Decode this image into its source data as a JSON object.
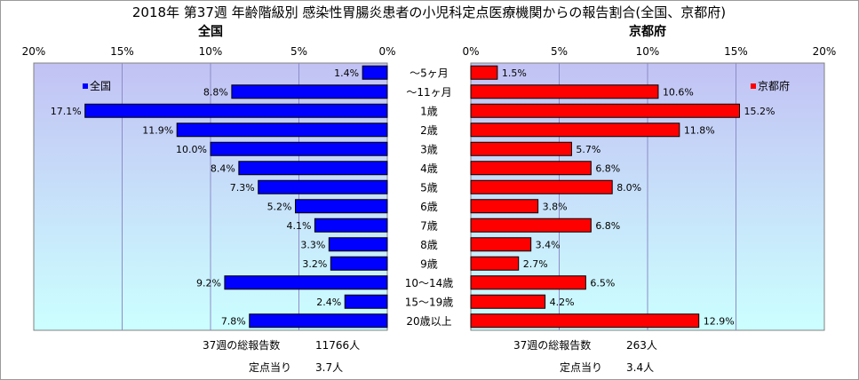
{
  "chart_data": {
    "type": "bar",
    "title": "2018年 第37週 年齢階級別 感染性胃腸炎患者の小児科定点医療機関からの報告割合(全国、京都府)",
    "categories": [
      "～5ヶ月",
      "～11ヶ月",
      "1歳",
      "2歳",
      "3歳",
      "4歳",
      "5歳",
      "6歳",
      "7歳",
      "8歳",
      "9歳",
      "10～14歳",
      "15～19歳",
      "20歳以上"
    ],
    "xlim": [
      0,
      20
    ],
    "ticks": [
      20,
      15,
      10,
      5,
      0
    ],
    "tick_suffix": "%",
    "value_suffix": "%",
    "grid": true,
    "series": [
      {
        "name": "全国",
        "panel_title": "全国",
        "legend_label": "全国",
        "color": "#0000ff",
        "values": [
          1.4,
          8.8,
          17.1,
          11.9,
          10.0,
          8.4,
          7.3,
          5.2,
          4.1,
          3.3,
          3.2,
          9.2,
          2.4,
          7.8
        ],
        "value_labels": [
          "1.4%",
          "8.8%",
          "17.1%",
          "11.9%",
          "10.0%",
          "8.4%",
          "7.3%",
          "5.2%",
          "4.1%",
          "3.3%",
          "3.2%",
          "9.2%",
          "2.4%",
          "7.8%"
        ],
        "total_label": "37週の総報告数",
        "total_value": "11766人",
        "per_label": "定点当り",
        "per_value": "3.7人"
      },
      {
        "name": "京都府",
        "panel_title": "京都府",
        "legend_label": "京都府",
        "color": "#ff0000",
        "values": [
          1.5,
          10.6,
          15.2,
          11.8,
          5.7,
          6.8,
          8.0,
          3.8,
          6.8,
          3.4,
          2.7,
          6.5,
          4.2,
          12.9
        ],
        "value_labels": [
          "1.5%",
          "10.6%",
          "15.2%",
          "11.8%",
          "5.7%",
          "6.8%",
          "8.0%",
          "3.8%",
          "6.8%",
          "3.4%",
          "2.7%",
          "6.5%",
          "4.2%",
          "12.9%"
        ],
        "total_label": "37週の総報告数",
        "total_value": "263人",
        "per_label": "定点当り",
        "per_value": "3.4人"
      }
    ],
    "colors": {
      "plot_top": "#c2c2f4",
      "plot_bottom": "#ccffff",
      "grid": "#8c8cc8"
    }
  }
}
